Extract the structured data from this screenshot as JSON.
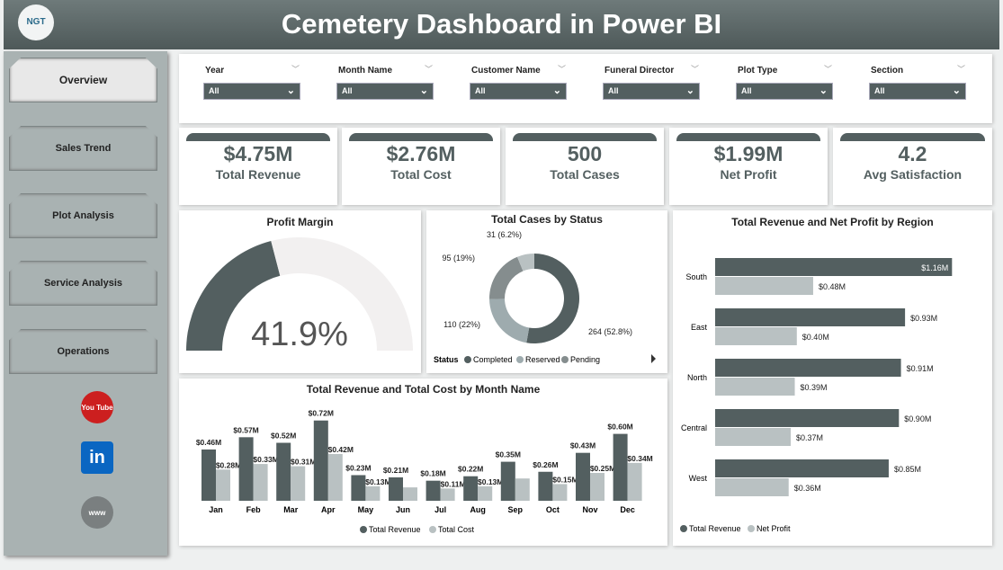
{
  "header": {
    "title": "Cemetery Dashboard in Power BI",
    "logo_text": "NGT"
  },
  "sidebar": {
    "items": [
      {
        "label": "Overview",
        "active": true
      },
      {
        "label": "Sales Trend"
      },
      {
        "label": "Plot Analysis"
      },
      {
        "label": "Service Analysis"
      },
      {
        "label": "Operations"
      }
    ],
    "social": [
      {
        "icon": "youtube-icon",
        "label": "You Tube"
      },
      {
        "icon": "linkedin-icon",
        "label": "in"
      },
      {
        "icon": "globe-icon",
        "label": "www"
      }
    ]
  },
  "filters": [
    {
      "label": "Year",
      "value": "All"
    },
    {
      "label": "Month Name",
      "value": "All"
    },
    {
      "label": "Customer Name",
      "value": "All"
    },
    {
      "label": "Funeral Director",
      "value": "All"
    },
    {
      "label": "Plot Type",
      "value": "All"
    },
    {
      "label": "Section",
      "value": "All"
    }
  ],
  "kpis": [
    {
      "value": "$4.75M",
      "label": "Total Revenue"
    },
    {
      "value": "$2.76M",
      "label": "Total Cost"
    },
    {
      "value": "500",
      "label": "Total Cases"
    },
    {
      "value": "$1.99M",
      "label": "Net Profit"
    },
    {
      "value": "4.2",
      "label": "Avg Satisfaction"
    }
  ],
  "colors": {
    "dark": "#535f60",
    "light": "#b9c1c2",
    "reserved": "#9eabae",
    "pending": "#858d8e",
    "gauge_bg": "#f2f0f0"
  },
  "chart_data": [
    {
      "type": "gauge",
      "title": "Profit Margin",
      "value": 41.9,
      "label": "41.9%",
      "min": 0,
      "max": 100
    },
    {
      "type": "pie",
      "title": "Total Cases by Status",
      "donut": true,
      "legend_title": "Status",
      "legend": "bottom",
      "slices": [
        {
          "name": "Completed",
          "value": 264,
          "label": "264 (52.8%)"
        },
        {
          "name": "Reserved",
          "value": 110,
          "label": "110 (22%)"
        },
        {
          "name": "Pending",
          "value": 95,
          "label": "95 (19%)"
        },
        {
          "name": "",
          "value": 31,
          "label": "31 (6.2%)"
        }
      ]
    },
    {
      "type": "bar",
      "title": "Total Revenue and Total Cost by Month Name",
      "legend": "bottom",
      "categories": [
        "Jan",
        "Feb",
        "Mar",
        "Apr",
        "May",
        "Jun",
        "Jul",
        "Aug",
        "Sep",
        "Oct",
        "Nov",
        "Dec"
      ],
      "series": [
        {
          "name": "Total Revenue",
          "values": [
            0.46,
            0.57,
            0.52,
            0.72,
            0.23,
            0.21,
            0.18,
            0.22,
            0.35,
            0.26,
            0.43,
            0.6
          ],
          "labels": [
            "$0.46M",
            "$0.57M",
            "$0.52M",
            "$0.72M",
            "$0.23M",
            "$0.21M",
            "$0.18M",
            "$0.22M",
            "$0.35M",
            "$0.26M",
            "$0.43M",
            "$0.60M"
          ]
        },
        {
          "name": "Total Cost",
          "values": [
            0.28,
            0.33,
            0.31,
            0.42,
            0.13,
            0.12,
            0.11,
            0.13,
            0.2,
            0.15,
            0.25,
            0.34
          ],
          "labels": [
            "$0.28M",
            "$0.33M",
            "$0.31M",
            "$0.42M",
            "$0.13M",
            null,
            "$0.11M",
            "$0.13M",
            null,
            "$0.15M",
            "$0.25M",
            "$0.34M"
          ]
        }
      ]
    },
    {
      "type": "bar",
      "orientation": "horizontal",
      "title": "Total Revenue and Net Profit by Region",
      "legend": "bottom-left",
      "categories": [
        "South",
        "East",
        "North",
        "Central",
        "West"
      ],
      "series": [
        {
          "name": "Total Revenue",
          "values": [
            1.16,
            0.93,
            0.91,
            0.9,
            0.85
          ],
          "labels": [
            "$1.16M",
            "$0.93M",
            "$0.91M",
            "$0.90M",
            "$0.85M"
          ]
        },
        {
          "name": "Net Profit",
          "values": [
            0.48,
            0.4,
            0.39,
            0.37,
            0.36
          ],
          "labels": [
            "$0.48M",
            "$0.40M",
            "$0.39M",
            "$0.37M",
            "$0.36M"
          ]
        }
      ]
    }
  ]
}
